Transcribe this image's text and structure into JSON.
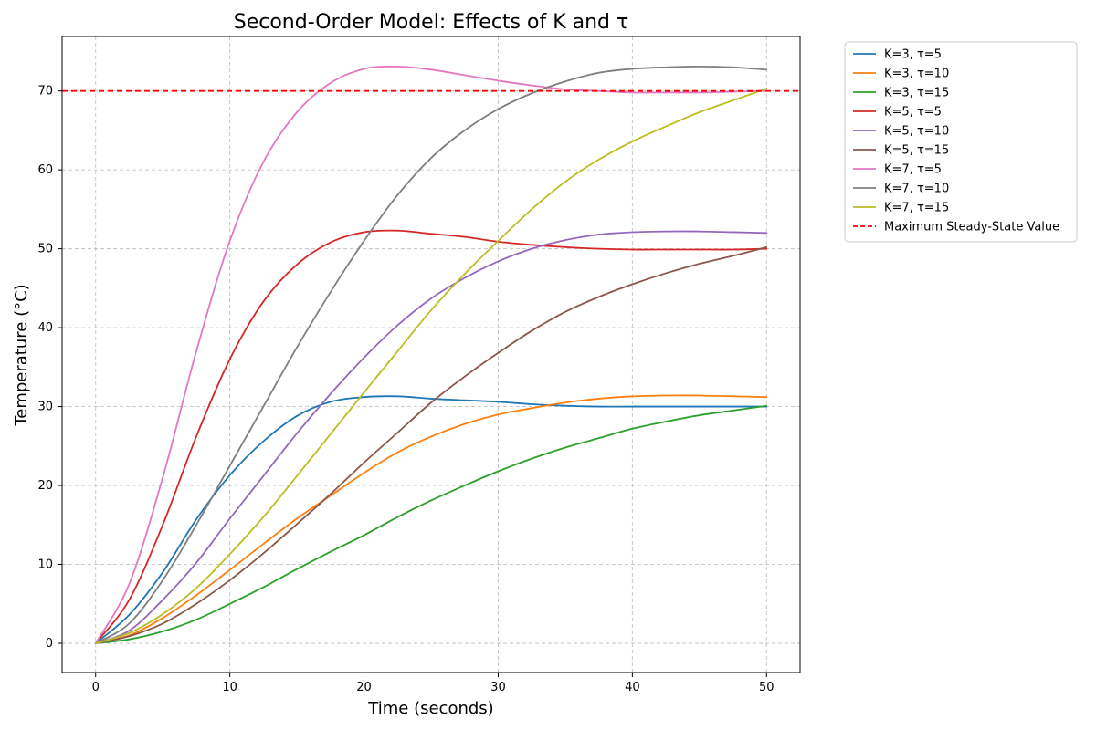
{
  "chart_data": {
    "type": "line",
    "title": "Second-Order Model: Effects of K and τ",
    "xlabel": "Time (seconds)",
    "ylabel": "Temperature (°C)",
    "xlim": [
      -2.5,
      52.5
    ],
    "ylim": [
      -3.7,
      76.9
    ],
    "xticks": [
      0,
      10,
      20,
      30,
      40,
      50
    ],
    "yticks": [
      0,
      10,
      20,
      30,
      40,
      50,
      60,
      70
    ],
    "grid": true,
    "legend_position": "outside-right",
    "x": [
      0,
      2.5,
      5,
      7.5,
      10,
      12.5,
      15,
      17.5,
      20,
      22.5,
      25,
      27.5,
      30,
      32.5,
      35,
      37.5,
      40,
      42.5,
      45,
      47.5,
      50
    ],
    "series": [
      {
        "name": "K=3, τ=5",
        "color": "#1f77b4",
        "style": "solid",
        "values": [
          0,
          3.6,
          9.0,
          15.7,
          21.3,
          25.6,
          28.8,
          30.6,
          31.2,
          31.3,
          31.0,
          30.8,
          30.6,
          30.3,
          30.1,
          30.0,
          30.0,
          30.0,
          30.0,
          30.0,
          30.0
        ]
      },
      {
        "name": "K=3, τ=10",
        "color": "#ff7f0e",
        "style": "solid",
        "values": [
          0,
          1.0,
          3.2,
          6.1,
          9.3,
          12.6,
          15.8,
          18.7,
          21.6,
          24.2,
          26.2,
          27.8,
          29.0,
          29.8,
          30.5,
          31.0,
          31.3,
          31.4,
          31.4,
          31.3,
          31.2
        ]
      },
      {
        "name": "K=3, τ=15",
        "color": "#2ca02c",
        "style": "solid",
        "values": [
          0,
          0.5,
          1.5,
          3.0,
          5.0,
          7.1,
          9.4,
          11.6,
          13.7,
          16.0,
          18.1,
          20.0,
          21.8,
          23.4,
          24.8,
          26.0,
          27.2,
          28.1,
          28.9,
          29.5,
          30.1
        ]
      },
      {
        "name": "K=5, τ=5",
        "color": "#d62728",
        "style": "solid",
        "values": [
          0,
          5.5,
          15.0,
          26.2,
          36.0,
          43.3,
          48.0,
          50.8,
          52.1,
          52.3,
          51.9,
          51.5,
          50.9,
          50.5,
          50.2,
          50.0,
          49.9,
          49.9,
          49.9,
          49.9,
          50.0
        ]
      },
      {
        "name": "K=5, τ=10",
        "color": "#9467bd",
        "style": "solid",
        "values": [
          0,
          1.6,
          5.5,
          10.2,
          15.8,
          21.2,
          26.6,
          31.6,
          36.2,
          40.3,
          43.7,
          46.3,
          48.4,
          50.0,
          51.1,
          51.8,
          52.1,
          52.2,
          52.2,
          52.1,
          52.0
        ]
      },
      {
        "name": "K=5, τ=15",
        "color": "#8c564b",
        "style": "solid",
        "values": [
          0,
          0.9,
          2.5,
          5.0,
          8.0,
          11.4,
          15.1,
          18.9,
          22.9,
          26.7,
          30.5,
          33.8,
          36.8,
          39.6,
          42.0,
          43.9,
          45.5,
          46.9,
          48.1,
          49.1,
          50.2
        ]
      },
      {
        "name": "K=7, τ=5",
        "color": "#e377c2",
        "style": "solid",
        "values": [
          0,
          7.5,
          21.0,
          37.0,
          51.0,
          61.0,
          67.3,
          71.0,
          72.8,
          73.1,
          72.7,
          72.0,
          71.3,
          70.7,
          70.2,
          70.0,
          69.8,
          69.8,
          69.8,
          69.9,
          70.0
        ]
      },
      {
        "name": "K=7, τ=10",
        "color": "#7f7f7f",
        "style": "solid",
        "values": [
          0,
          2.5,
          8.0,
          15.0,
          22.5,
          30.0,
          37.5,
          44.5,
          51.0,
          56.8,
          61.5,
          65.0,
          67.7,
          69.7,
          71.2,
          72.3,
          72.8,
          73.0,
          73.1,
          73.0,
          72.7
        ]
      },
      {
        "name": "K=7, τ=15",
        "color": "#bcbd22",
        "style": "solid",
        "values": [
          0,
          1.3,
          3.7,
          7.0,
          11.3,
          16.0,
          21.2,
          26.5,
          31.8,
          37.0,
          42.2,
          46.8,
          51.0,
          55.0,
          58.5,
          61.3,
          63.6,
          65.5,
          67.3,
          68.8,
          70.3
        ]
      }
    ],
    "reference_line": {
      "name": "Maximum Steady-State Value",
      "value": 70,
      "color": "#ff0000",
      "style": "dashed"
    }
  }
}
